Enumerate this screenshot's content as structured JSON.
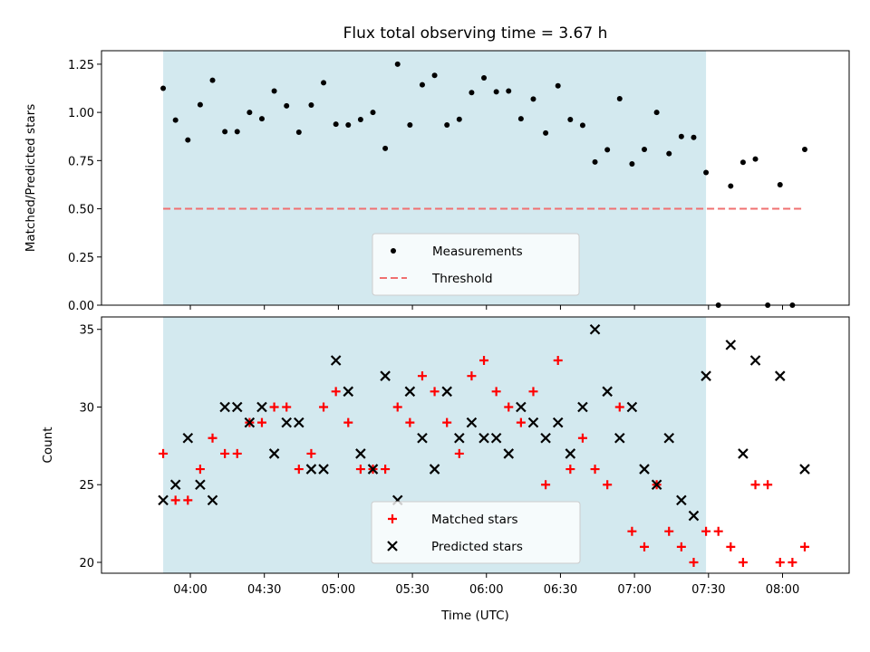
{
  "chart_data": [
    {
      "type": "scatter",
      "title": "Flux total observing time = 3.67 h",
      "xlabel": "",
      "ylabel": "Matched/Predicted stars",
      "ylim": [
        0,
        1.32
      ],
      "yticks": [
        "0.00",
        "0.25",
        "0.50",
        "0.75",
        "1.00",
        "1.25"
      ],
      "shaded_span": [
        "03:49",
        "07:29"
      ],
      "shade_color": "#d3e9ef",
      "legend_position": "lower-center",
      "series": [
        {
          "name": "Measurements",
          "marker": "dot",
          "color": "#000000",
          "x": [
            "03:49",
            "03:54",
            "03:59",
            "04:04",
            "04:09",
            "04:14",
            "04:19",
            "04:24",
            "04:29",
            "04:34",
            "04:39",
            "04:44",
            "04:49",
            "04:54",
            "04:59",
            "05:04",
            "05:09",
            "05:14",
            "05:19",
            "05:24",
            "05:29",
            "05:34",
            "05:39",
            "05:44",
            "05:49",
            "05:54",
            "05:59",
            "06:04",
            "06:09",
            "06:14",
            "06:19",
            "06:24",
            "06:29",
            "06:34",
            "06:39",
            "06:44",
            "06:49",
            "06:54",
            "06:59",
            "07:04",
            "07:09",
            "07:14",
            "07:19",
            "07:24",
            "07:29",
            "07:34",
            "07:39",
            "07:44",
            "07:49",
            "07:54",
            "07:59",
            "08:04",
            "08:09"
          ],
          "y": [
            1.125,
            0.96,
            0.857,
            1.04,
            1.167,
            0.9,
            0.9,
            1.0,
            0.967,
            1.111,
            1.034,
            0.897,
            1.038,
            1.154,
            0.939,
            0.935,
            0.963,
            1.0,
            0.813,
            1.25,
            0.935,
            1.143,
            1.192,
            0.935,
            0.964,
            1.103,
            1.179,
            1.107,
            1.111,
            0.967,
            1.069,
            0.893,
            1.138,
            0.963,
            0.933,
            0.743,
            0.806,
            1.071,
            0.733,
            0.808,
            1.0,
            0.786,
            0.875,
            0.87,
            0.688,
            0.0,
            0.618,
            0.741,
            0.758,
            0.0,
            0.625,
            0.0,
            0.808
          ]
        },
        {
          "name": "Threshold",
          "marker": "dashed-line",
          "color": "#f07070",
          "x": [
            "03:49",
            "08:09"
          ],
          "y": [
            0.5,
            0.5
          ]
        }
      ]
    },
    {
      "type": "scatter",
      "title": "",
      "xlabel": "Time (UTC)",
      "ylabel": "Count",
      "ylim": [
        19.3,
        35.8
      ],
      "yticks": [
        "20",
        "25",
        "30",
        "35"
      ],
      "xticks": [
        "04:00",
        "04:30",
        "05:00",
        "05:30",
        "06:00",
        "06:30",
        "07:00",
        "07:30",
        "08:00"
      ],
      "shaded_span": [
        "03:49",
        "07:29"
      ],
      "shade_color": "#d3e9ef",
      "legend_position": "lower-center",
      "series": [
        {
          "name": "Matched stars",
          "marker": "plus",
          "color": "#ff0000",
          "x": [
            "03:49",
            "03:54",
            "03:59",
            "04:04",
            "04:09",
            "04:14",
            "04:19",
            "04:24",
            "04:29",
            "04:34",
            "04:39",
            "04:44",
            "04:49",
            "04:54",
            "04:59",
            "05:04",
            "05:09",
            "05:14",
            "05:19",
            "05:24",
            "05:29",
            "05:34",
            "05:39",
            "05:44",
            "05:49",
            "05:54",
            "05:59",
            "06:04",
            "06:09",
            "06:14",
            "06:19",
            "06:24",
            "06:29",
            "06:34",
            "06:39",
            "06:44",
            "06:49",
            "06:54",
            "06:59",
            "07:04",
            "07:09",
            "07:14",
            "07:19",
            "07:24",
            "07:29",
            "07:34",
            "07:39",
            "07:44",
            "07:49",
            "07:54",
            "07:59",
            "08:04",
            "08:09"
          ],
          "y": [
            27,
            24,
            24,
            26,
            28,
            27,
            27,
            29,
            29,
            30,
            30,
            26,
            27,
            30,
            31,
            29,
            26,
            26,
            26,
            30,
            29,
            32,
            31,
            29,
            27,
            32,
            33,
            31,
            30,
            29,
            31,
            25,
            33,
            26,
            28,
            26,
            25,
            30,
            22,
            21,
            25,
            22,
            21,
            20,
            22,
            22,
            21,
            20,
            25,
            25,
            20,
            20,
            21
          ]
        },
        {
          "name": "Predicted stars",
          "marker": "x",
          "color": "#000000",
          "x": [
            "03:49",
            "03:54",
            "03:59",
            "04:04",
            "04:09",
            "04:14",
            "04:19",
            "04:24",
            "04:29",
            "04:34",
            "04:39",
            "04:44",
            "04:49",
            "04:54",
            "04:59",
            "05:04",
            "05:09",
            "05:14",
            "05:19",
            "05:24",
            "05:29",
            "05:34",
            "05:39",
            "05:44",
            "05:49",
            "05:54",
            "05:59",
            "06:04",
            "06:09",
            "06:14",
            "06:19",
            "06:24",
            "06:29",
            "06:34",
            "06:39",
            "06:44",
            "06:49",
            "06:54",
            "06:59",
            "07:04",
            "07:09",
            "07:14",
            "07:19",
            "07:24",
            "07:29",
            "07:39",
            "07:44",
            "07:49",
            "07:59",
            "08:09"
          ],
          "y": [
            24,
            25,
            28,
            25,
            24,
            30,
            30,
            29,
            30,
            27,
            29,
            29,
            26,
            26,
            33,
            31,
            27,
            26,
            32,
            24,
            31,
            28,
            26,
            31,
            28,
            29,
            28,
            28,
            27,
            30,
            29,
            28,
            29,
            27,
            30,
            35,
            31,
            28,
            30,
            26,
            25,
            28,
            24,
            23,
            32,
            34,
            27,
            33,
            32,
            26
          ]
        }
      ]
    }
  ]
}
